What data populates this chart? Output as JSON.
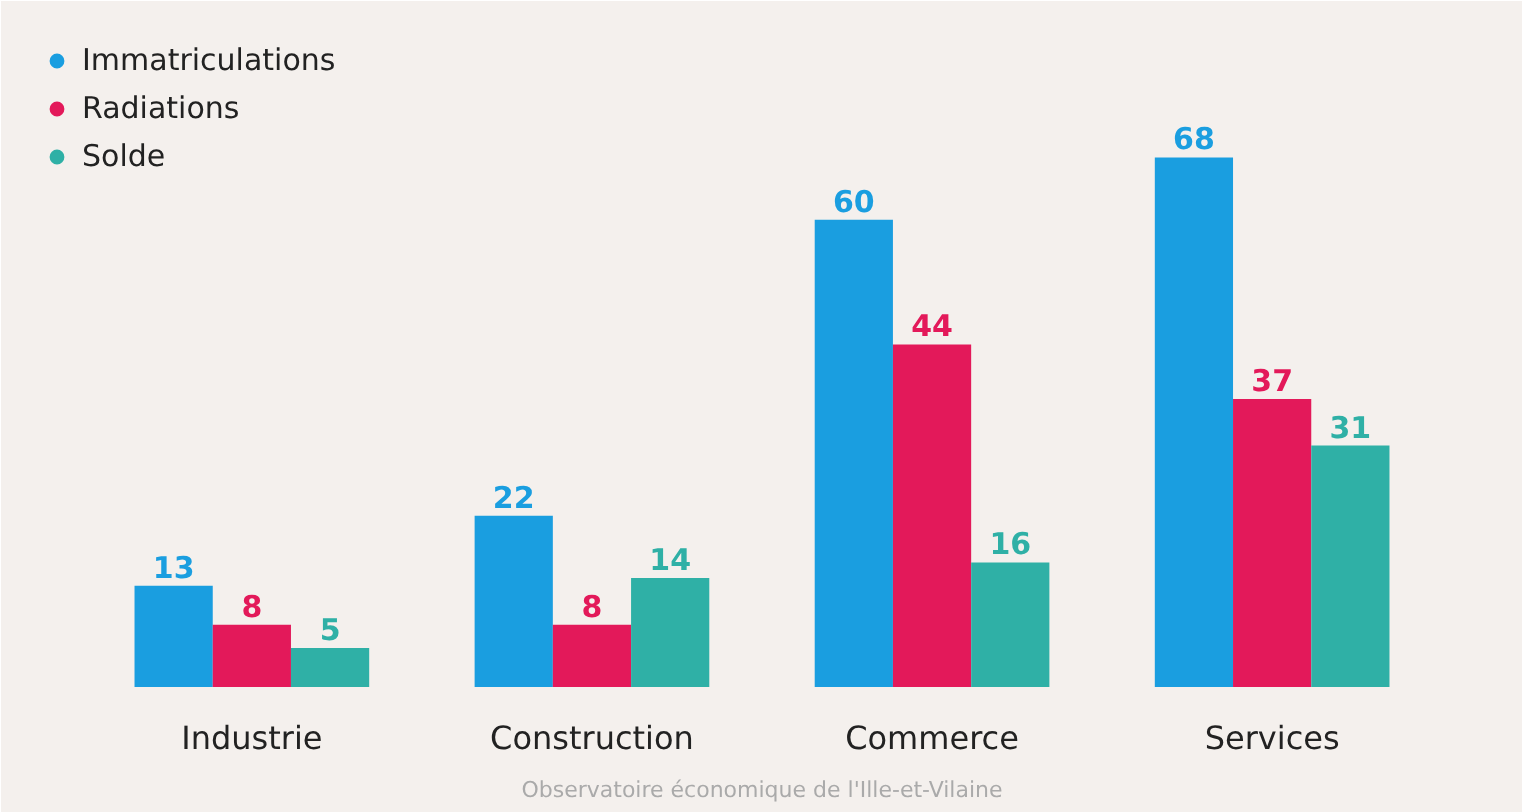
{
  "chart_data": {
    "type": "bar",
    "categories": [
      "Industrie",
      "Construction",
      "Commerce",
      "Services"
    ],
    "series": [
      {
        "name": "Immatriculations",
        "color": "#1a9ee0",
        "values": [
          13,
          22,
          60,
          68
        ]
      },
      {
        "name": "Radiations",
        "color": "#e3195a",
        "values": [
          8,
          8,
          44,
          37
        ]
      },
      {
        "name": "Solde",
        "color": "#2fb0a6",
        "values": [
          5,
          14,
          16,
          31
        ]
      }
    ],
    "data_labels": true,
    "legend": "top left",
    "marker": "circle",
    "grid": false,
    "annotations": [
      "Observatoire économique de l'Ille-et-Vilaine"
    ]
  }
}
